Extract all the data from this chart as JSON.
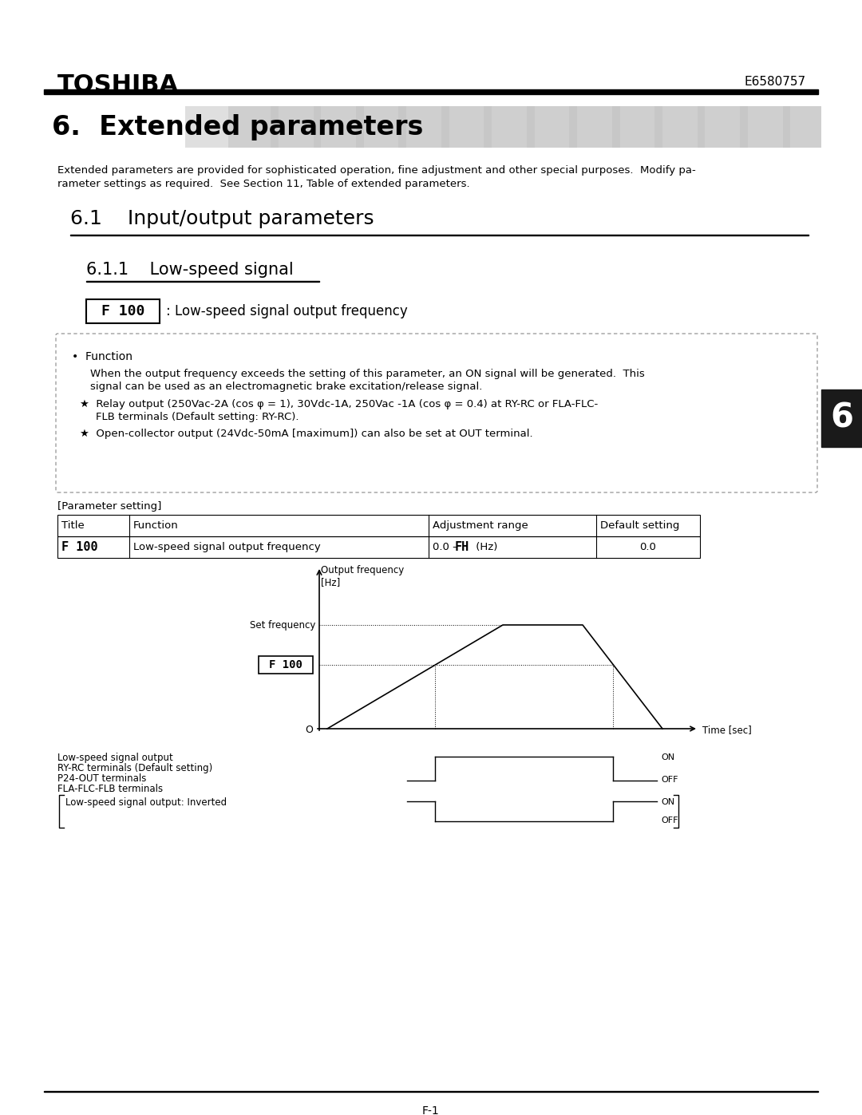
{
  "title_company": "TOSHIBA",
  "title_doc": "E6580757",
  "section_title": "6.  Extended parameters",
  "section_desc1": "Extended parameters are provided for sophisticated operation, fine adjustment and other special purposes.  Modify pa-",
  "section_desc2": "rameter settings as required.  See Section 11, Table of extended parameters.",
  "subsection_title": "6.1    Input/output parameters",
  "subsubsection_title": "6.1.1    Low-speed signal",
  "param_code": "F 100",
  "param_desc": ": Low-speed signal output frequency",
  "bullet_title": "Function",
  "bullet_text1": "When the output frequency exceeds the setting of this parameter, an ON signal will be generated.  This",
  "bullet_text2": "signal can be used as an electromagnetic brake excitation/release signal.",
  "star1_text": "Relay output (250Vac-2A (cos φ = 1), 30Vdc-1A, 250Vac -1A (cos φ = 0.4) at RY-RC or FLA-FLC-",
  "star1_text2": "FLB terminals (Default setting: RY-RC).",
  "star2_text": "Open-collector output (24Vdc-50mA [maximum]) can also be set at OUT terminal.",
  "param_setting_label": "[Parameter setting]",
  "table_headers": [
    "Title",
    "Function",
    "Adjustment range",
    "Default setting"
  ],
  "table_row_code": "F 100",
  "table_row_func": "Low-speed signal output frequency",
  "table_row_range_prefix": "0.0 –",
  "table_row_range_mono": "FH",
  "table_row_range_suffix": " (Hz)",
  "table_row_default": "0.0",
  "graph_ylabel_line1": "Output frequency",
  "graph_ylabel_line2": "[Hz]",
  "graph_xlabel": "Time [sec]",
  "graph_set_freq_label": "Set frequency",
  "graph_f100_label": "F 100",
  "graph_origin_label": "O",
  "signal_label1": "Low-speed signal output",
  "signal_label2": "RY-RC terminals (Default setting)",
  "signal_label3": "P24-OUT terminals",
  "signal_label4": "FLA-FLC-FLB terminals",
  "signal_label5": "Low-speed signal output: Inverted",
  "signal_on": "ON",
  "signal_off": "OFF",
  "signal_on2": "ON",
  "signal_off2": "OFF",
  "page_number": "F-1",
  "tab_number": "6",
  "bg_color": "#ffffff",
  "line_color": "#000000",
  "tab_bg": "#1a1a1a",
  "tab_text": "#ffffff"
}
